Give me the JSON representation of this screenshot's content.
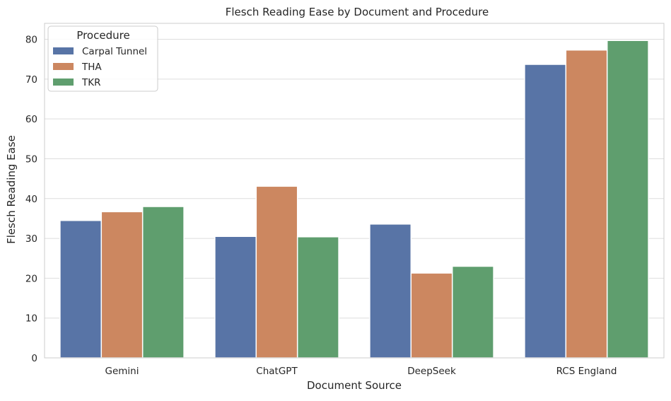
{
  "chart_data": {
    "type": "bar",
    "title": "Flesch Reading Ease by Document and Procedure",
    "xlabel": "Document Source",
    "ylabel": "Flesch Reading Ease",
    "categories": [
      "Gemini",
      "ChatGPT",
      "DeepSeek",
      "RCS England"
    ],
    "series": [
      {
        "name": "Carpal Tunnel",
        "color": "#5874a6",
        "values": [
          34.5,
          30.5,
          33.6,
          73.7
        ]
      },
      {
        "name": "THA",
        "color": "#cc8760",
        "values": [
          36.7,
          43.1,
          21.3,
          77.3
        ]
      },
      {
        "name": "TKR",
        "color": "#5f9e6e",
        "values": [
          38.0,
          30.4,
          23.0,
          79.7
        ]
      }
    ],
    "ylim": [
      0,
      84
    ],
    "yticks": [
      0,
      10,
      20,
      30,
      40,
      50,
      60,
      70,
      80
    ],
    "grid": true,
    "legend": {
      "title": "Procedure",
      "placement": "top-left"
    }
  }
}
